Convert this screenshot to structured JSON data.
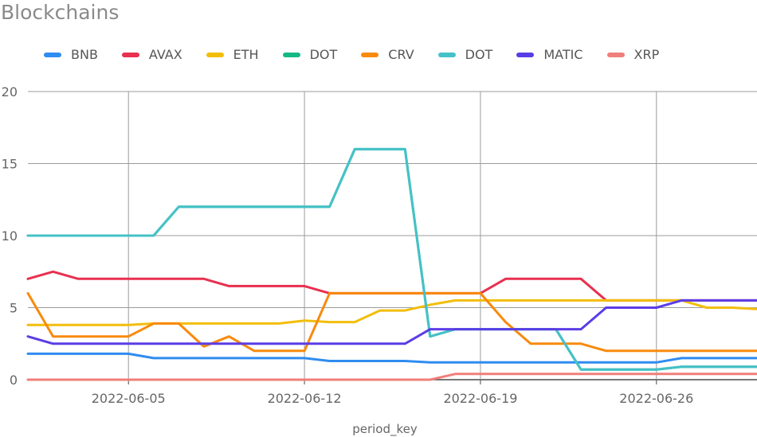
{
  "chart_data": {
    "type": "line",
    "title": "Blockchains",
    "xlabel": "period_key",
    "ylabel": "",
    "ylim": [
      0,
      20
    ],
    "yticks": [
      "0",
      "5",
      "10",
      "15",
      "20"
    ],
    "xticks": [
      {
        "label": "2022-06-05",
        "x": "2022-06-05"
      },
      {
        "label": "2022-06-12",
        "x": "2022-06-12"
      },
      {
        "label": "2022-06-19",
        "x": "2022-06-19"
      },
      {
        "label": "2022-06-26",
        "x": "2022-06-26"
      }
    ],
    "grid": true,
    "legend_position": "top",
    "x": [
      "2022-06-01",
      "2022-06-02",
      "2022-06-03",
      "2022-06-04",
      "2022-06-05",
      "2022-06-06",
      "2022-06-07",
      "2022-06-08",
      "2022-06-09",
      "2022-06-10",
      "2022-06-11",
      "2022-06-12",
      "2022-06-13",
      "2022-06-14",
      "2022-06-15",
      "2022-06-16",
      "2022-06-17",
      "2022-06-18",
      "2022-06-19",
      "2022-06-20",
      "2022-06-21",
      "2022-06-22",
      "2022-06-23",
      "2022-06-24",
      "2022-06-25",
      "2022-06-26",
      "2022-06-27",
      "2022-06-28",
      "2022-06-29",
      "2022-06-30"
    ],
    "series": [
      {
        "name": "BNB",
        "color": "#2f8cf0",
        "values": [
          1.8,
          1.8,
          1.8,
          1.8,
          1.8,
          1.5,
          1.5,
          1.5,
          1.5,
          1.5,
          1.5,
          1.5,
          1.3,
          1.3,
          1.3,
          1.3,
          1.2,
          1.2,
          1.2,
          1.2,
          1.2,
          1.2,
          1.2,
          1.2,
          1.2,
          1.2,
          1.5,
          1.5,
          1.5,
          1.5
        ]
      },
      {
        "name": "AVAX",
        "color": "#e8304f",
        "values": [
          7.0,
          7.5,
          7.0,
          7.0,
          7.0,
          7.0,
          7.0,
          7.0,
          6.5,
          6.5,
          6.5,
          6.5,
          6.0,
          6.0,
          6.0,
          6.0,
          6.0,
          6.0,
          6.0,
          7.0,
          7.0,
          7.0,
          7.0,
          5.5,
          5.5,
          5.5,
          5.5,
          5.5,
          5.5,
          5.5
        ]
      },
      {
        "name": "ETH",
        "color": "#f2be0c",
        "values": [
          3.8,
          3.8,
          3.8,
          3.8,
          3.8,
          3.9,
          3.9,
          3.9,
          3.9,
          3.9,
          3.9,
          4.1,
          4.0,
          4.0,
          4.8,
          4.8,
          5.2,
          5.5,
          5.5,
          5.5,
          5.5,
          5.5,
          5.5,
          5.5,
          5.5,
          5.5,
          5.5,
          5.0,
          5.0,
          4.9
        ]
      },
      {
        "name": "DOT",
        "color": "#14b886",
        "values": [
          10.0,
          10.0,
          10.0,
          10.0,
          10.0,
          10.0,
          12.0,
          12.0,
          12.0,
          12.0,
          12.0,
          12.0,
          12.0,
          16.0,
          16.0,
          16.0,
          3.0,
          3.5,
          3.5,
          3.5,
          3.5,
          3.5,
          0.7,
          0.7,
          0.7,
          0.7,
          0.9,
          0.9,
          0.9,
          0.9
        ]
      },
      {
        "name": "CRV",
        "color": "#f88a0d",
        "values": [
          6.0,
          3.0,
          3.0,
          3.0,
          3.0,
          3.9,
          3.9,
          2.3,
          3.0,
          2.0,
          2.0,
          2.0,
          6.0,
          6.0,
          6.0,
          6.0,
          6.0,
          6.0,
          6.0,
          4.0,
          2.5,
          2.5,
          2.5,
          2.0,
          2.0,
          2.0,
          2.0,
          2.0,
          2.0,
          2.0
        ]
      },
      {
        "name": "DOT",
        "color": "#45c1c8",
        "values": [
          10.0,
          10.0,
          10.0,
          10.0,
          10.0,
          10.0,
          12.0,
          12.0,
          12.0,
          12.0,
          12.0,
          12.0,
          12.0,
          16.0,
          16.0,
          16.0,
          3.0,
          3.5,
          3.5,
          3.5,
          3.5,
          3.5,
          0.7,
          0.7,
          0.7,
          0.7,
          0.9,
          0.9,
          0.9,
          0.9
        ]
      },
      {
        "name": "MATIC",
        "color": "#5b3de6",
        "values": [
          3.0,
          2.5,
          2.5,
          2.5,
          2.5,
          2.5,
          2.5,
          2.5,
          2.5,
          2.5,
          2.5,
          2.5,
          2.5,
          2.5,
          2.5,
          2.5,
          3.5,
          3.5,
          3.5,
          3.5,
          3.5,
          3.5,
          3.5,
          5.0,
          5.0,
          5.0,
          5.5,
          5.5,
          5.5,
          5.5
        ]
      },
      {
        "name": "XRP",
        "color": "#ef7f7a",
        "values": [
          0,
          0,
          0,
          0,
          0,
          0,
          0,
          0,
          0,
          0,
          0,
          0,
          0,
          0,
          0,
          0,
          0,
          0.4,
          0.4,
          0.4,
          0.4,
          0.4,
          0.4,
          0.4,
          0.4,
          0.4,
          0.4,
          0.4,
          0.4,
          0.4
        ]
      }
    ]
  }
}
